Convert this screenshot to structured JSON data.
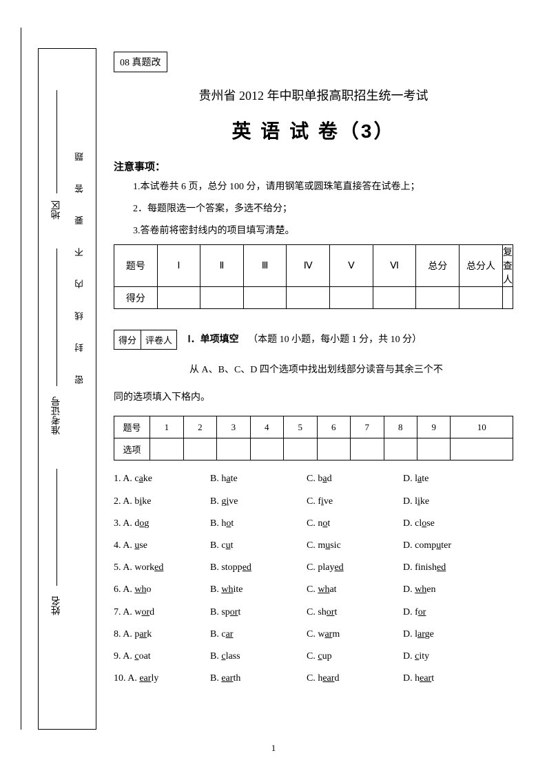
{
  "sidebar": {
    "seal_warning": "密 封 线 内 不 要 答 题",
    "fields": {
      "region": "地区",
      "exam_no": "准考证号",
      "name": "姓名"
    }
  },
  "tag": "08 真题改",
  "title_line1": "贵州省 2012 年中职单报高职招生统一考试",
  "title_line2": "英 语 试 卷（3）",
  "notice": {
    "header": "注意事项：",
    "items": [
      "1.本试卷共 6 页，总分 100 分，请用钢笔或圆珠笔直接答在试卷上；",
      "2．每题限选一个答案，多选不给分；",
      "3.答卷前将密封线内的项目填写清楚。"
    ]
  },
  "score_table": {
    "headers": [
      "题号",
      "Ⅰ",
      "Ⅱ",
      "Ⅲ",
      "Ⅳ",
      "Ⅴ",
      "Ⅵ",
      "总分",
      "总分人",
      "复查人"
    ],
    "row_label": "得分"
  },
  "section_box": {
    "c1": "得分",
    "c2": "评卷人"
  },
  "section1": {
    "title": "Ⅰ．单项填空",
    "desc": "（本题 10 小题，每小题 1 分，共 10 分）",
    "instruction_line1": "从 A、B、C、D 四个选项中找出划线部分读音与其余三个不",
    "instruction_line2": "同的选项填入下格内。"
  },
  "answer_table": {
    "row1_label": "题号",
    "nums": [
      "1",
      "2",
      "3",
      "4",
      "5",
      "6",
      "7",
      "8",
      "9",
      "10"
    ],
    "row2_label": "选项"
  },
  "questions": [
    {
      "n": "1",
      "a_pre": "c",
      "a_ul": "a",
      "a_post": "ke",
      "b_pre": "h",
      "b_ul": "a",
      "b_post": "te",
      "c_pre": "b",
      "c_ul": "a",
      "c_post": "d",
      "d_pre": "l",
      "d_ul": "a",
      "d_post": "te"
    },
    {
      "n": "2",
      "a_pre": "b",
      "a_ul": "i",
      "a_post": "ke",
      "b_pre": "g",
      "b_ul": "i",
      "b_post": "ve",
      "c_pre": "f",
      "c_ul": "i",
      "c_post": "ve",
      "d_pre": "l",
      "d_ul": "i",
      "d_post": "ke"
    },
    {
      "n": "3",
      "a_pre": "d",
      "a_ul": "o",
      "a_post": "g",
      "b_pre": "h",
      "b_ul": "o",
      "b_post": "t",
      "c_pre": "n",
      "c_ul": "o",
      "c_post": "t",
      "d_pre": "cl",
      "d_ul": "o",
      "d_post": "se"
    },
    {
      "n": "4",
      "a_pre": "",
      "a_ul": "u",
      "a_post": "se",
      "b_pre": "c",
      "b_ul": "u",
      "b_post": "t",
      "c_pre": "m",
      "c_ul": "u",
      "c_post": "sic",
      "d_pre": "comp",
      "d_ul": "u",
      "d_post": "ter"
    },
    {
      "n": "5",
      "a_pre": "work",
      "a_ul": "ed",
      "a_post": "",
      "b_pre": "stopp",
      "b_ul": "ed",
      "b_post": "",
      "c_pre": "play",
      "c_ul": "ed",
      "c_post": "",
      "d_pre": "finish",
      "d_ul": "ed",
      "d_post": ""
    },
    {
      "n": "6",
      "a_pre": "",
      "a_ul": "wh",
      "a_post": "o",
      "b_pre": "",
      "b_ul": "wh",
      "b_post": "ite",
      "c_pre": "",
      "c_ul": "wh",
      "c_post": "at",
      "d_pre": "",
      "d_ul": "wh",
      "d_post": "en"
    },
    {
      "n": "7",
      "a_pre": "w",
      "a_ul": "or",
      "a_post": "d",
      "b_pre": "sp",
      "b_ul": "or",
      "b_post": "t",
      "c_pre": "sh",
      "c_ul": "or",
      "c_post": "t",
      "d_pre": "f",
      "d_ul": "or",
      "d_post": ""
    },
    {
      "n": "8",
      "a_pre": "p",
      "a_ul": "ar",
      "a_post": "k",
      "b_pre": "c",
      "b_ul": "ar",
      "b_post": "",
      "c_pre": "w",
      "c_ul": "ar",
      "c_post": "m",
      "d_pre": "l",
      "d_ul": "ar",
      "d_post": "ge"
    },
    {
      "n": "9",
      "a_pre": "",
      "a_ul": "c",
      "a_post": "oat",
      "b_pre": "",
      "b_ul": "c",
      "b_post": "lass",
      "c_pre": "",
      "c_ul": "c",
      "c_post": "up",
      "d_pre": "",
      "d_ul": "c",
      "d_post": "ity"
    },
    {
      "n": "10",
      "a_pre": "",
      "a_ul": "ear",
      "a_post": "ly",
      "b_pre": "",
      "b_ul": "ear",
      "b_post": "th",
      "c_pre": "h",
      "c_ul": "ear",
      "c_post": "d",
      "d_pre": "h",
      "d_ul": "ear",
      "d_post": "t"
    }
  ],
  "opt_labels": {
    "a": ". A. ",
    "b": "B. ",
    "c": "C. ",
    "d": "D. "
  },
  "page_number": "1"
}
